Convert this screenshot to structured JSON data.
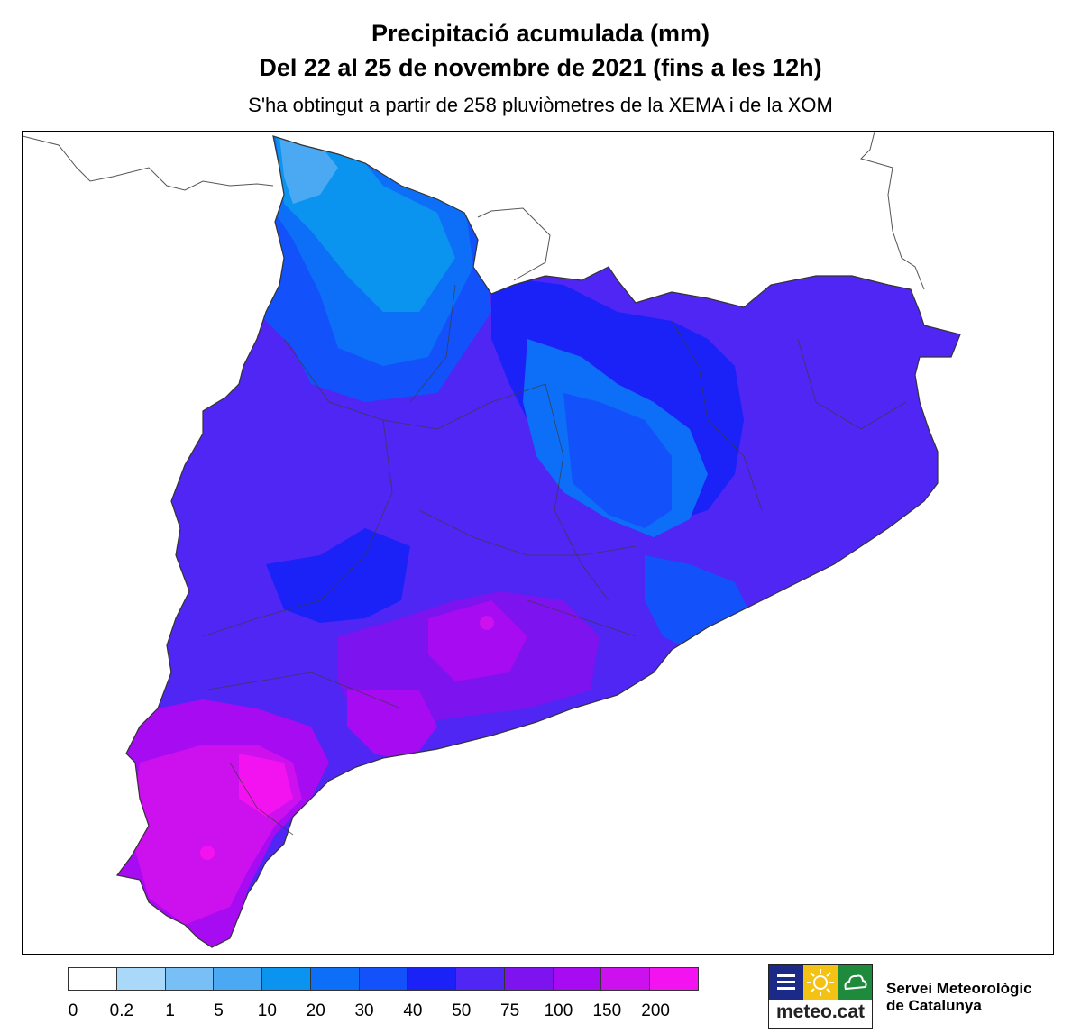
{
  "header": {
    "title": "Precipitació acumulada (mm)",
    "subtitle": "Del 22 al 25 de novembre de 2021 (fins a les 12h)",
    "source_note": "S'ha obtingut a partir de 258 pluviòmetres de la XEMA i de la XOM"
  },
  "legend": {
    "ticks": [
      "0",
      "0.2",
      "1",
      "5",
      "10",
      "20",
      "30",
      "40",
      "50",
      "75",
      "100",
      "150",
      "200"
    ],
    "colors": [
      "#ffffff",
      "#a9d8f9",
      "#78bff5",
      "#4aa9f2",
      "#0b93f0",
      "#0d6ef7",
      "#1352fb",
      "#1a22f8",
      "#4f26f4",
      "#7d13ee",
      "#a70bf2",
      "#cc10ee",
      "#f313f0"
    ]
  },
  "brand": {
    "logo_text": "meteo.cat",
    "org_line1": "Servei Meteorològic",
    "org_line2": "de Catalunya",
    "logo_colors": [
      "#1b2a86",
      "#f3c214",
      "#1d8a3c"
    ]
  }
}
